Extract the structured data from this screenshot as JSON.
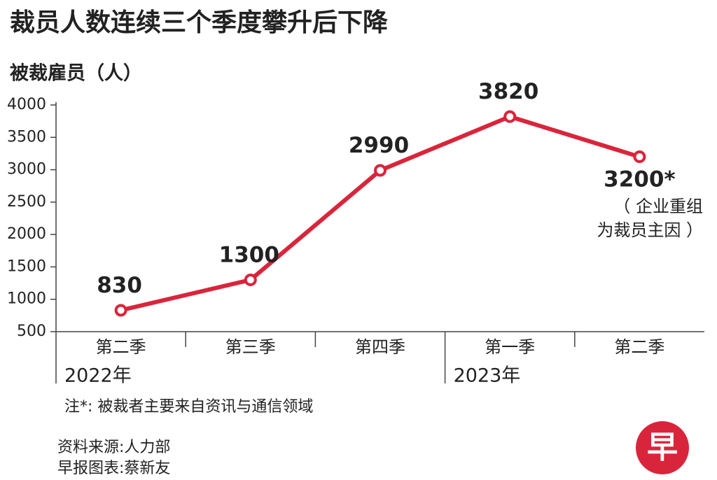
{
  "chart_data": {
    "type": "line",
    "title": "裁员人数连续三个季度攀升后下降",
    "y_label": "被裁雇员（人）",
    "categories": [
      "第二季",
      "第三季",
      "第四季",
      "第一季",
      "第二季"
    ],
    "year_labels": [
      "2022年",
      null,
      null,
      "2023年",
      null
    ],
    "values": [
      830,
      1300,
      2990,
      3820,
      3200
    ],
    "value_labels": [
      "830",
      "1300",
      "2990",
      "3820",
      "3200*"
    ],
    "color": "#d9253b",
    "ylim": [
      500,
      4000
    ],
    "yticks": [
      500,
      1000,
      1500,
      2000,
      2500,
      3000,
      3500,
      4000
    ],
    "grid": false,
    "annotation_lines": [
      "（ 企业重组",
      "为裁员主因 ）"
    ],
    "note": "注*: 被裁者主要来自资讯与通信领域",
    "source": "资料来源:人力部",
    "credit": "早报图表:蔡新友",
    "logo": "早"
  }
}
